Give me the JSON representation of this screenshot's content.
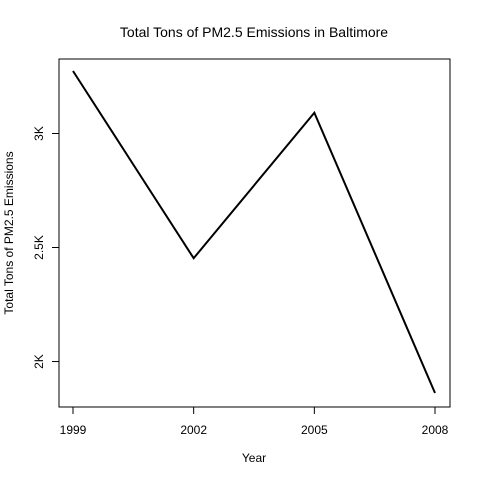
{
  "chart_data": {
    "type": "line",
    "title": "Total Tons of PM2.5 Emissions in Baltimore",
    "xlabel": "Year",
    "ylabel": "Total Tons of PM2.5 Emissions",
    "x": [
      1999,
      2002,
      2005,
      2008
    ],
    "x_tick_labels": [
      "1999",
      "2002",
      "2005",
      "2008"
    ],
    "series": [
      {
        "values": [
          3274,
          2453,
          3091,
          1862
        ],
        "color": "#000000"
      }
    ],
    "y_ticks": [
      2000,
      2500,
      3000
    ],
    "y_tick_labels": [
      "2K",
      "2.5K",
      "3K"
    ],
    "xlim": [
      1999,
      2008
    ],
    "ylim": [
      1862,
      3274
    ],
    "grid": false,
    "legend": "none"
  }
}
